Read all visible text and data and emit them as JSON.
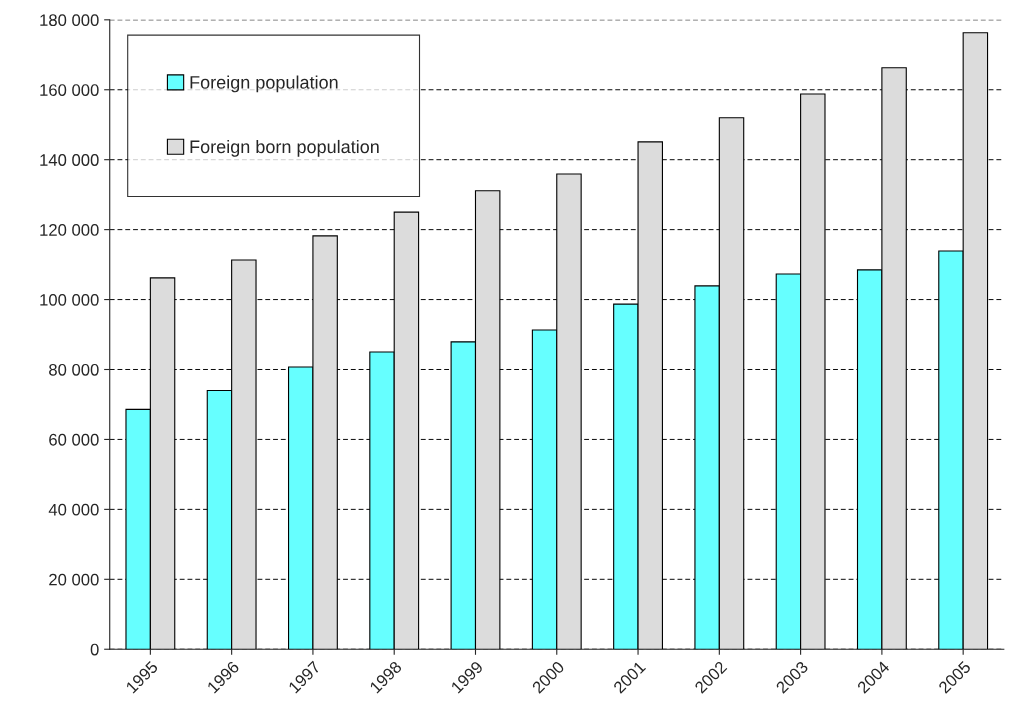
{
  "chart_data": {
    "type": "bar",
    "categories": [
      "1995",
      "1996",
      "1997",
      "1998",
      "1999",
      "2000",
      "2001",
      "2002",
      "2003",
      "2004",
      "2005"
    ],
    "series": [
      {
        "name": "Foreign population",
        "color": "#66ffff",
        "values": [
          68600,
          74000,
          80700,
          85000,
          87900,
          91300,
          98700,
          103900,
          107300,
          108500,
          113900
        ]
      },
      {
        "name": "Foreign born population",
        "color": "#dcdcdc",
        "values": [
          106200,
          111300,
          118200,
          125000,
          131100,
          135900,
          145100,
          152000,
          158800,
          166300,
          176300
        ]
      }
    ],
    "ylim": [
      0,
      180000
    ],
    "yticks": [
      0,
      {
        "value": 20000,
        "label": "20 000"
      },
      {
        "value": 40000,
        "label": "40 000"
      },
      {
        "value": 60000,
        "label": "60 000"
      },
      {
        "value": 80000,
        "label": "80 000"
      },
      {
        "value": 100000,
        "label": "100 000"
      },
      {
        "value": 120000,
        "label": "120 000"
      },
      {
        "value": 140000,
        "label": "140 000"
      },
      {
        "value": 160000,
        "label": "160 000"
      },
      {
        "value": 180000,
        "label": "180 000"
      }
    ],
    "grid": "y",
    "legend": "top left",
    "line_style": "dashed"
  }
}
